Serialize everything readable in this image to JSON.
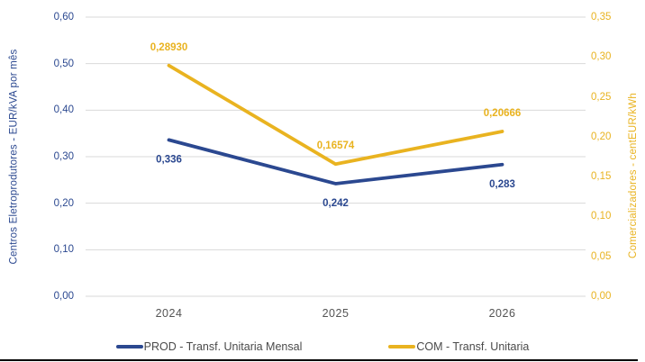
{
  "chart_data": {
    "type": "line",
    "categories": [
      "2024",
      "2025",
      "2026"
    ],
    "series": [
      {
        "name": "PROD - Transf. Unitaria Mensal",
        "axis": "left",
        "color": "#2B4890",
        "values": [
          0.336,
          0.242,
          0.283
        ],
        "labels": [
          "0,336",
          "0,242",
          "0,283"
        ],
        "label_position": "below"
      },
      {
        "name": "COM - Transf. Unitaria",
        "axis": "right",
        "color": "#E9B320",
        "values": [
          0.2893,
          0.16574,
          0.20666
        ],
        "labels": [
          "0,28930",
          "0,16574",
          "0,20666"
        ],
        "label_position": "above"
      }
    ],
    "left_axis": {
      "title": "Centros Eletroprodutores - EUR/kVA por mês",
      "min": 0,
      "max": 0.6,
      "tick_step": 0.1,
      "tick_labels": [
        "0,00",
        "0,10",
        "0,20",
        "0,30",
        "0,40",
        "0,50",
        "0,60"
      ],
      "color": "#2B4890"
    },
    "right_axis": {
      "title": "Comercializadores - centEUR/kWh",
      "min": 0,
      "max": 0.35,
      "tick_step": 0.05,
      "tick_labels": [
        "0,00",
        "0,05",
        "0,10",
        "0,15",
        "0,20",
        "0,25",
        "0,30",
        "0,35"
      ],
      "color": "#E9B320"
    },
    "grid": true,
    "gridline_color": "#D9D9D9",
    "x_label_color": "#545454",
    "legend_text_color": "#4A4A4A",
    "legend_position": "bottom",
    "title": ""
  }
}
